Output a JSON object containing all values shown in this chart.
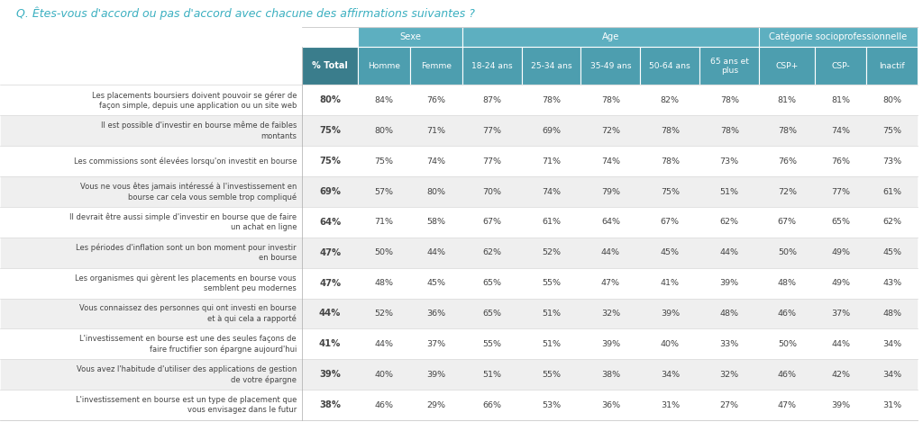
{
  "title": "Q. Êtes-vous d'accord ou pas d'accord avec chacune des affirmations suivantes ?",
  "title_color": "#3AAFC0",
  "col_headers": [
    "% Total",
    "Homme",
    "Femme",
    "18-24 ans",
    "25-34 ans",
    "35-49 ans",
    "50-64 ans",
    "65 ans et\nplus",
    "CSP+",
    "CSP-",
    "Inactif"
  ],
  "group_spans": [
    {
      "text": "Sexe",
      "cols": [
        1,
        2
      ]
    },
    {
      "text": "Age",
      "cols": [
        3,
        4,
        5,
        6,
        7
      ]
    },
    {
      "text": "Catégorie socioprofessionnelle",
      "cols": [
        8,
        9,
        10
      ]
    }
  ],
  "rows": [
    {
      "label": "Les placements boursiers doivent pouvoir se gérer de\nfaçon simple, depuis une application ou un site web",
      "values": [
        "80%",
        "84%",
        "76%",
        "87%",
        "78%",
        "78%",
        "82%",
        "78%",
        "81%",
        "81%",
        "80%"
      ]
    },
    {
      "label": "Il est possible d'investir en bourse même de faibles\nmontants",
      "values": [
        "75%",
        "80%",
        "71%",
        "77%",
        "69%",
        "72%",
        "78%",
        "78%",
        "78%",
        "74%",
        "75%"
      ]
    },
    {
      "label": "Les commissions sont élevées lorsqu'on investit en bourse",
      "values": [
        "75%",
        "75%",
        "74%",
        "77%",
        "71%",
        "74%",
        "78%",
        "73%",
        "76%",
        "76%",
        "73%"
      ]
    },
    {
      "label": "Vous ne vous êtes jamais intéressé à l'investissement en\nbourse car cela vous semble trop compliqué",
      "values": [
        "69%",
        "57%",
        "80%",
        "70%",
        "74%",
        "79%",
        "75%",
        "51%",
        "72%",
        "77%",
        "61%"
      ]
    },
    {
      "label": "Il devrait être aussi simple d'investir en bourse que de faire\nun achat en ligne",
      "values": [
        "64%",
        "71%",
        "58%",
        "67%",
        "61%",
        "64%",
        "67%",
        "62%",
        "67%",
        "65%",
        "62%"
      ]
    },
    {
      "label": "Les périodes d'inflation sont un bon moment pour investir\nen bourse",
      "values": [
        "47%",
        "50%",
        "44%",
        "62%",
        "52%",
        "44%",
        "45%",
        "44%",
        "50%",
        "49%",
        "45%"
      ]
    },
    {
      "label": "Les organismes qui gèrent les placements en bourse vous\nsemblent peu modernes",
      "values": [
        "47%",
        "48%",
        "45%",
        "65%",
        "55%",
        "47%",
        "41%",
        "39%",
        "48%",
        "49%",
        "43%"
      ]
    },
    {
      "label": "Vous connaissez des personnes qui ont investi en bourse\net à qui cela a rapporté",
      "values": [
        "44%",
        "52%",
        "36%",
        "65%",
        "51%",
        "32%",
        "39%",
        "48%",
        "46%",
        "37%",
        "48%"
      ]
    },
    {
      "label": "L'investissement en bourse est une des seules façons de\nfaire fructifier son épargne aujourd'hui",
      "values": [
        "41%",
        "44%",
        "37%",
        "55%",
        "51%",
        "39%",
        "40%",
        "33%",
        "50%",
        "44%",
        "34%"
      ]
    },
    {
      "label": "Vous avez l'habitude d'utiliser des applications de gestion\nde votre épargne",
      "values": [
        "39%",
        "40%",
        "39%",
        "51%",
        "55%",
        "38%",
        "34%",
        "32%",
        "46%",
        "42%",
        "34%"
      ]
    },
    {
      "label": "L'investissement en bourse est un type de placement que\nvous envisagez dans le futur",
      "values": [
        "38%",
        "46%",
        "29%",
        "66%",
        "53%",
        "36%",
        "31%",
        "27%",
        "47%",
        "39%",
        "31%"
      ]
    }
  ],
  "header_bg": "#4D9EAF",
  "header_text": "#FFFFFF",
  "total_col_bg": "#3A7D8C",
  "row_bg_even": "#FFFFFF",
  "row_bg_odd": "#EFEFEF",
  "cell_text_color": "#444444",
  "label_text_color": "#444444",
  "group_header_bg": "#5DAFC0"
}
